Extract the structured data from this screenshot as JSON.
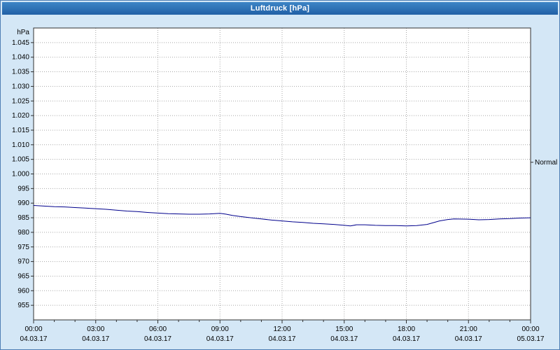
{
  "window": {
    "title": "Luftdruck [hPa]"
  },
  "colors": {
    "background": "#d4e7f6",
    "titlebar_text": "#ffffff",
    "plot_background": "#ffffff",
    "grid": "#a8a8a8",
    "axis": "#303030",
    "line": "#00008c"
  },
  "chart_data": {
    "type": "line",
    "title": "Luftdruck [hPa]",
    "ylabel": "hPa",
    "xlabel": "",
    "xlim": [
      0,
      24
    ],
    "ylim": [
      950,
      1050
    ],
    "grid": true,
    "legend_position": "none",
    "normal_marker": {
      "label": "Normal",
      "value": 1004
    },
    "yticks": [
      {
        "value": 955,
        "label": "955"
      },
      {
        "value": 960,
        "label": "960"
      },
      {
        "value": 965,
        "label": "965"
      },
      {
        "value": 970,
        "label": "970"
      },
      {
        "value": 975,
        "label": "975"
      },
      {
        "value": 980,
        "label": "980"
      },
      {
        "value": 985,
        "label": "985"
      },
      {
        "value": 990,
        "label": "990"
      },
      {
        "value": 995,
        "label": "995"
      },
      {
        "value": 1000,
        "label": "1.000"
      },
      {
        "value": 1005,
        "label": "1.005"
      },
      {
        "value": 1010,
        "label": "1.010"
      },
      {
        "value": 1015,
        "label": "1.015"
      },
      {
        "value": 1020,
        "label": "1.020"
      },
      {
        "value": 1025,
        "label": "1.025"
      },
      {
        "value": 1030,
        "label": "1.030"
      },
      {
        "value": 1035,
        "label": "1.035"
      },
      {
        "value": 1040,
        "label": "1.040"
      },
      {
        "value": 1045,
        "label": "1.045"
      }
    ],
    "xticks": [
      {
        "hour": 0,
        "label": "00:00",
        "date": "04.03.17"
      },
      {
        "hour": 3,
        "label": "03:00",
        "date": "04.03.17"
      },
      {
        "hour": 6,
        "label": "06:00",
        "date": "04.03.17"
      },
      {
        "hour": 9,
        "label": "09:00",
        "date": "04.03.17"
      },
      {
        "hour": 12,
        "label": "12:00",
        "date": "04.03.17"
      },
      {
        "hour": 15,
        "label": "15:00",
        "date": "04.03.17"
      },
      {
        "hour": 18,
        "label": "18:00",
        "date": "04.03.17"
      },
      {
        "hour": 21,
        "label": "21:00",
        "date": "04.03.17"
      },
      {
        "hour": 24,
        "label": "00:00",
        "date": "05.03.17"
      }
    ],
    "series": [
      {
        "name": "Luftdruck",
        "color": "#00008c",
        "points": [
          [
            0,
            989.2
          ],
          [
            0.5,
            989.0
          ],
          [
            1,
            988.8
          ],
          [
            1.5,
            988.7
          ],
          [
            2,
            988.5
          ],
          [
            2.5,
            988.3
          ],
          [
            3,
            988.1
          ],
          [
            3.5,
            987.9
          ],
          [
            4,
            987.6
          ],
          [
            4.5,
            987.3
          ],
          [
            5,
            987.1
          ],
          [
            5.5,
            986.8
          ],
          [
            6,
            986.6
          ],
          [
            6.5,
            986.4
          ],
          [
            7,
            986.3
          ],
          [
            7.5,
            986.2
          ],
          [
            8,
            986.2
          ],
          [
            8.5,
            986.3
          ],
          [
            9,
            986.5
          ],
          [
            9.3,
            986.2
          ],
          [
            9.6,
            985.8
          ],
          [
            10,
            985.4
          ],
          [
            10.5,
            985.0
          ],
          [
            11,
            984.6
          ],
          [
            11.5,
            984.2
          ],
          [
            12,
            983.9
          ],
          [
            12.5,
            983.6
          ],
          [
            13,
            983.4
          ],
          [
            13.5,
            983.1
          ],
          [
            14,
            982.9
          ],
          [
            14.5,
            982.7
          ],
          [
            15,
            982.4
          ],
          [
            15.3,
            982.2
          ],
          [
            15.6,
            982.6
          ],
          [
            16,
            982.6
          ],
          [
            16.5,
            982.4
          ],
          [
            17,
            982.3
          ],
          [
            17.5,
            982.3
          ],
          [
            18,
            982.2
          ],
          [
            18.5,
            982.3
          ],
          [
            19,
            982.7
          ],
          [
            19.3,
            983.3
          ],
          [
            19.6,
            983.9
          ],
          [
            20,
            984.4
          ],
          [
            20.3,
            984.6
          ],
          [
            21,
            984.5
          ],
          [
            21.5,
            984.3
          ],
          [
            22,
            984.4
          ],
          [
            22.5,
            984.6
          ],
          [
            23,
            984.7
          ],
          [
            23.5,
            984.9
          ],
          [
            24,
            985.0
          ]
        ]
      }
    ]
  }
}
